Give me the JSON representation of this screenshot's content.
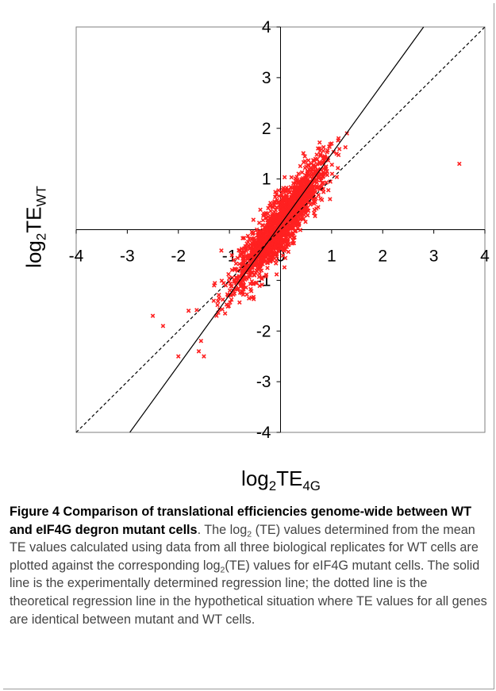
{
  "chart_data": {
    "type": "scatter",
    "title": "",
    "xlabel": "log2TE4G",
    "ylabel": "log2TEWT",
    "xlim": [
      -4,
      4
    ],
    "ylim": [
      -4,
      4
    ],
    "x_ticks": [
      "-4",
      "-3",
      "-2",
      "-1",
      "0",
      "1",
      "2",
      "3",
      "4"
    ],
    "y_ticks": [
      "-4",
      "-3",
      "-2",
      "-1",
      "1",
      "2",
      "3",
      "4"
    ],
    "grid": false,
    "marker_color": "#ff2020",
    "series": [
      {
        "points": [
          [
            -2.5,
            -1.7
          ],
          [
            -2.3,
            -1.9
          ],
          [
            -2.0,
            -2.5
          ],
          [
            -1.6,
            -2.4
          ],
          [
            -1.5,
            -2.5
          ],
          [
            -1.8,
            -1.6
          ],
          [
            -1.3,
            -1.1
          ],
          [
            -0.6,
            -0.6
          ],
          [
            0.2,
            0.3
          ],
          [
            0.8,
            1.1
          ],
          [
            1.1,
            1.5
          ],
          [
            1.3,
            1.9
          ],
          [
            3.5,
            1.3
          ]
        ]
      }
    ],
    "lines": [
      {
        "style": "solid",
        "from": [
          -2.95,
          -4
        ],
        "to": [
          2.8,
          4
        ]
      },
      {
        "style": "dotted",
        "from": [
          -4,
          -4
        ],
        "to": [
          4,
          4
        ]
      }
    ]
  },
  "axis_titles": {
    "y_main": "log",
    "y_sub": "2",
    "y_main2": "TE",
    "y_sub2": "WT",
    "x_main": "log",
    "x_sub": "2",
    "x_main2": "TE",
    "x_sub2": "4G"
  },
  "caption": {
    "title": "Figure 4 Comparison of translational efficiencies genome-wide between WT and eIF4G degron mutant cells",
    "body_1": ". The log",
    "body_sub": "2",
    "body_2": " (TE) values determined from the mean TE values calculated using data from all three biological replicates for WT cells are plotted against the corresponding log",
    "body_sub2": "2",
    "body_3": "(TE) values for eIF4G mutant cells. The solid line is the experimentally determined regression line; the dotted line is the theoretical regression line in the hypothetical situation where TE values for all genes are identical between mutant and WT cells."
  }
}
